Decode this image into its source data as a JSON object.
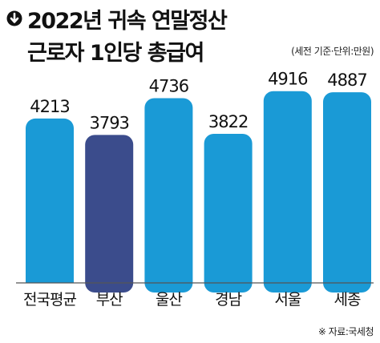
{
  "header": {
    "title_line1": "2022년 귀속 연말정산",
    "title_line2": "근로자 1인당 총급여",
    "subtitle": "(세전 기준·단위:만원)",
    "icon": "down-arrow-circle-icon"
  },
  "footer": {
    "source": "※ 자료:국세청"
  },
  "colors": {
    "bar": "#1a9ad6",
    "bar_highlight": "#3b4c8c",
    "baseline": "#555555"
  },
  "chart_data": {
    "type": "bar",
    "title": "2022년 귀속 연말정산 근로자 1인당 총급여",
    "subtitle": "(세전 기준·단위:만원)",
    "categories": [
      "전국평균",
      "부산",
      "울산",
      "경남",
      "서울",
      "세종"
    ],
    "values": [
      4213,
      3793,
      4736,
      3822,
      4916,
      4887
    ],
    "highlight_index": 1,
    "xlabel": "",
    "ylabel": "",
    "ylim": [
      0,
      5300
    ],
    "grid": false,
    "legend": "none"
  }
}
